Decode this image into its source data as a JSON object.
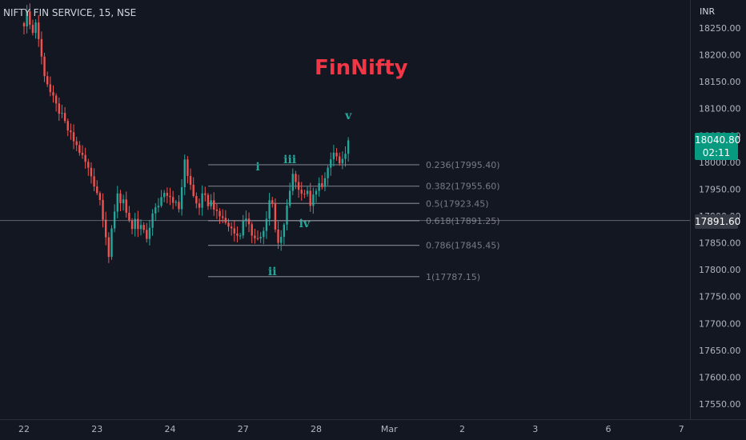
{
  "symbol": {
    "title": "NIFTY FIN SERVICE, 15, NSE"
  },
  "currency": "INR",
  "annotation": {
    "title": "FinNifty"
  },
  "price_badge": {
    "price": "18040.80",
    "countdown": "02:11",
    "color": "#089981"
  },
  "crosshair_badge": {
    "price": "17891.60"
  },
  "colors": {
    "background": "#131722",
    "up": "#26a69a",
    "down": "#ef5350",
    "wave_labels": "#26a69a",
    "fib_lines": "#787b86",
    "title": "#f23645"
  },
  "chart_data": {
    "type": "candlestick",
    "title": "FinNifty",
    "xlabel": "",
    "ylabel": "",
    "ylim": [
      17520,
      18290
    ],
    "y_ticks": [
      18250,
      18200,
      18150,
      18100,
      18050,
      18000,
      17950,
      17900,
      17850,
      17800,
      17750,
      17700,
      17650,
      17600,
      17550
    ],
    "y_tick_labels": [
      "18250.00",
      "18200.00",
      "18150.00",
      "18100.00",
      "18050.00",
      "18000.00",
      "17950.00",
      "17900.00",
      "17850.00",
      "17800.00",
      "17750.00",
      "17700.00",
      "17650.00",
      "17600.00",
      "17550.00"
    ],
    "x_ticks": [
      {
        "label": "22",
        "bar": 0
      },
      {
        "label": "23",
        "bar": 25
      },
      {
        "label": "24",
        "bar": 50
      },
      {
        "label": "27",
        "bar": 75
      },
      {
        "label": "28",
        "bar": 100
      },
      {
        "label": "Mar",
        "bar": 125
      },
      {
        "label": "2",
        "bar": 150
      },
      {
        "label": "3",
        "bar": 175
      },
      {
        "label": "6",
        "bar": 200
      },
      {
        "label": "7",
        "bar": 225
      }
    ],
    "candle_anchors": [
      [
        0,
        18260
      ],
      [
        1,
        18275
      ],
      [
        2,
        18262
      ],
      [
        3,
        18240
      ],
      [
        4,
        18262
      ],
      [
        5,
        18230
      ],
      [
        6,
        18195
      ],
      [
        7,
        18165
      ],
      [
        9,
        18130
      ],
      [
        11,
        18105
      ],
      [
        13,
        18085
      ],
      [
        15,
        18060
      ],
      [
        17,
        18040
      ],
      [
        19,
        18020
      ],
      [
        21,
        18000
      ],
      [
        23,
        17975
      ],
      [
        24,
        17960
      ],
      [
        25,
        17945
      ],
      [
        26,
        17930
      ],
      [
        27,
        17900
      ],
      [
        28,
        17865
      ],
      [
        29,
        17825
      ],
      [
        30,
        17870
      ],
      [
        31,
        17905
      ],
      [
        32,
        17945
      ],
      [
        33,
        17925
      ],
      [
        34,
        17935
      ],
      [
        35,
        17905
      ],
      [
        36,
        17885
      ],
      [
        37,
        17870
      ],
      [
        38,
        17895
      ],
      [
        39,
        17872
      ],
      [
        40,
        17882
      ],
      [
        41,
        17868
      ],
      [
        42,
        17858
      ],
      [
        43,
        17882
      ],
      [
        44,
        17902
      ],
      [
        46,
        17922
      ],
      [
        48,
        17948
      ],
      [
        50,
        17938
      ],
      [
        52,
        17922
      ],
      [
        53,
        17912
      ],
      [
        54,
        17955
      ],
      [
        55,
        18000
      ],
      [
        56,
        17975
      ],
      [
        57,
        17962
      ],
      [
        58,
        17940
      ],
      [
        59,
        17928
      ],
      [
        60,
        17920
      ],
      [
        61,
        17948
      ],
      [
        62,
        17935
      ],
      [
        63,
        17925
      ],
      [
        64,
        17935
      ],
      [
        65,
        17918
      ],
      [
        66,
        17908
      ],
      [
        68,
        17898
      ],
      [
        70,
        17882
      ],
      [
        72,
        17872
      ],
      [
        74,
        17868
      ],
      [
        75,
        17890
      ],
      [
        76,
        17900
      ],
      [
        77,
        17882
      ],
      [
        78,
        17868
      ],
      [
        79,
        17865
      ],
      [
        80,
        17855
      ],
      [
        81,
        17862
      ],
      [
        82,
        17878
      ],
      [
        83,
        17898
      ],
      [
        84,
        17935
      ],
      [
        85,
        17925
      ],
      [
        86,
        17875
      ],
      [
        87,
        17852
      ],
      [
        88,
        17862
      ],
      [
        89,
        17878
      ],
      [
        90,
        17915
      ],
      [
        91,
        17952
      ],
      [
        92,
        17978
      ],
      [
        93,
        17960
      ],
      [
        94,
        17945
      ],
      [
        95,
        17938
      ],
      [
        96,
        17935
      ],
      [
        97,
        17952
      ],
      [
        98,
        17925
      ],
      [
        99,
        17940
      ],
      [
        100,
        17950
      ],
      [
        102,
        17960
      ],
      [
        103,
        17975
      ],
      [
        104,
        17990
      ],
      [
        105,
        18000
      ],
      [
        106,
        18020
      ],
      [
        107,
        18010
      ],
      [
        108,
        17995
      ],
      [
        109,
        18000
      ],
      [
        110,
        18020
      ],
      [
        111,
        18040.8
      ]
    ],
    "fibonacci": [
      {
        "label": "0.236(17995.40)",
        "value": 17995.4
      },
      {
        "label": "0.382(17955.60)",
        "value": 17955.6
      },
      {
        "label": "0.5(17923.45)",
        "value": 17923.45
      },
      {
        "label": "0.618(17891.25)",
        "value": 17891.25
      },
      {
        "label": "0.786(17845.45)",
        "value": 17845.45
      },
      {
        "label": "1(17787.15)",
        "value": 17787.15
      }
    ],
    "wave_labels": [
      {
        "label": "i",
        "bar": 80,
        "price": 17985
      },
      {
        "label": "ii",
        "bar": 85,
        "price": 17790
      },
      {
        "label": "iii",
        "bar": 91,
        "price": 17998
      },
      {
        "label": "iv",
        "bar": 96,
        "price": 17879
      },
      {
        "label": "v",
        "bar": 111,
        "price": 18080
      }
    ],
    "crosshair_price": 17891.6
  }
}
